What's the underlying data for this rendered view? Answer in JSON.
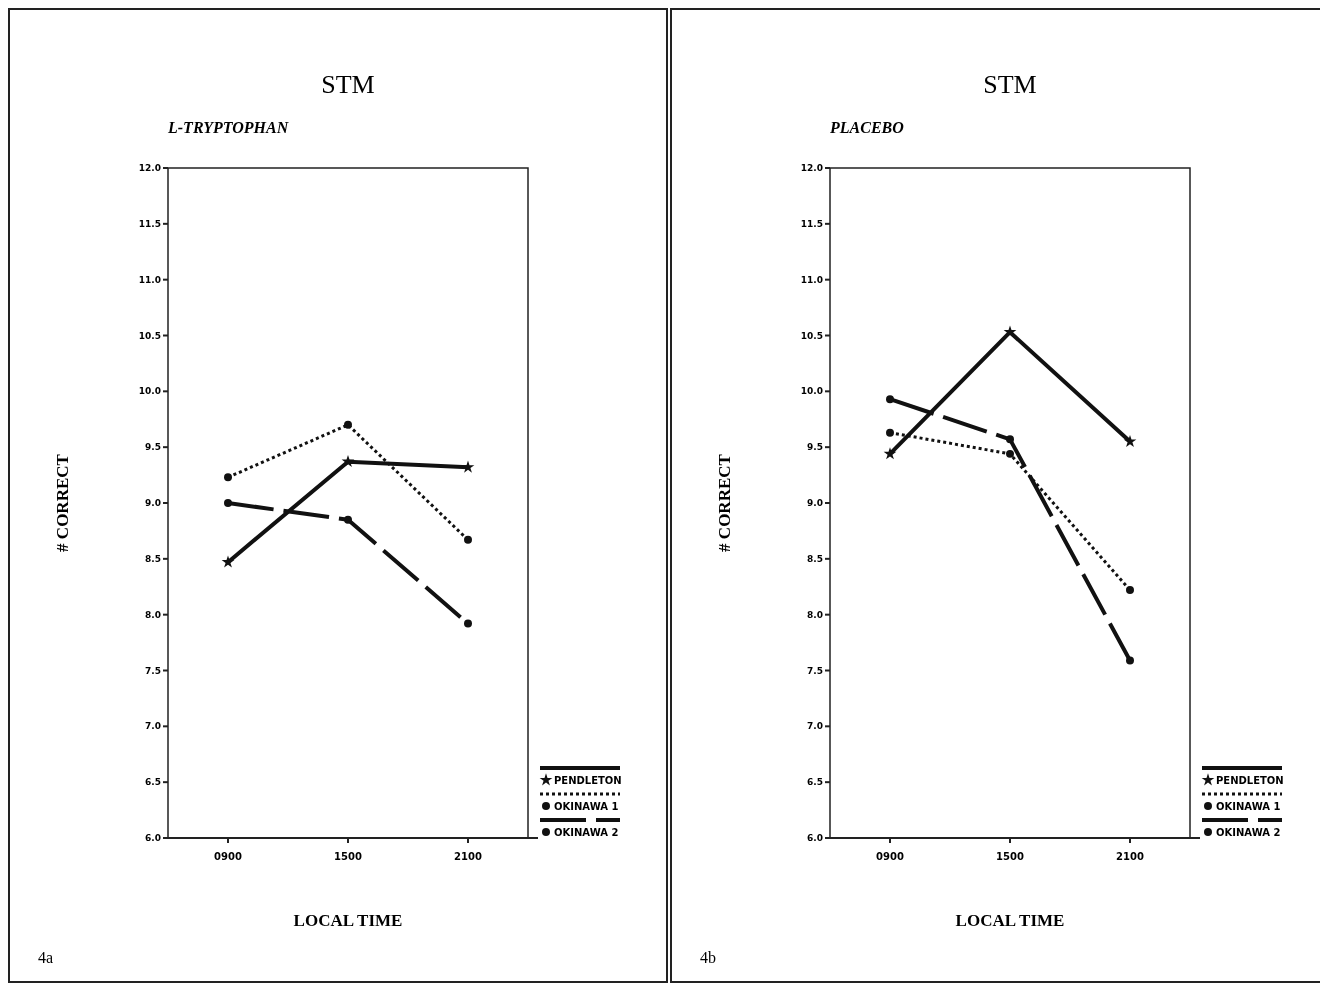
{
  "chart_data": [
    {
      "type": "line",
      "title": "STM",
      "subtitle": "L-TRYPTOPHAN",
      "xlabel": "LOCAL TIME",
      "ylabel": "# CORRECT",
      "annotations": [
        "4a"
      ],
      "categories": [
        "0900",
        "1500",
        "2100"
      ],
      "ylim": [
        6,
        12
      ],
      "yticks": [
        {
          "value": 6,
          "label": "6.0"
        },
        6.5,
        {
          "value": 7,
          "label": "7.0"
        },
        7.5,
        {
          "value": 8,
          "label": "8.0"
        },
        8.5,
        {
          "value": 9,
          "label": "9.0"
        },
        9.5,
        {
          "value": 10,
          "label": "10.0"
        },
        10.5,
        {
          "value": 11,
          "label": "11.0"
        },
        11.5,
        {
          "value": 12,
          "label": "12.0"
        }
      ],
      "legend": "bottom right",
      "grid": false,
      "series": [
        {
          "name": "PENDLETON",
          "color": "#111111",
          "values": [
            8.47,
            9.37,
            9.32
          ],
          "marker": "star",
          "line_style": "solid"
        },
        {
          "name": "OKINAWA 1",
          "color": "#111111",
          "values": [
            9.23,
            9.7,
            8.67
          ],
          "marker": "circle",
          "line_style": "dotted"
        },
        {
          "name": "OKINAWA 2",
          "color": "#111111",
          "values": [
            9.0,
            8.85,
            7.92
          ],
          "marker": "circle",
          "line_style": "dashed"
        }
      ]
    },
    {
      "type": "line",
      "title": "STM",
      "subtitle": "PLACEBO",
      "xlabel": "LOCAL TIME",
      "ylabel": "# CORRECT",
      "annotations": [
        "4b"
      ],
      "categories": [
        "0900",
        "1500",
        "2100"
      ],
      "ylim": [
        6,
        12
      ],
      "yticks": [
        {
          "value": 6,
          "label": "6.0"
        },
        6.5,
        {
          "value": 7,
          "label": "7.0"
        },
        7.5,
        {
          "value": 8,
          "label": "8.0"
        },
        8.5,
        {
          "value": 9,
          "label": "9.0"
        },
        9.5,
        {
          "value": 10,
          "label": "10.0"
        },
        10.5,
        {
          "value": 11,
          "label": "11.0"
        },
        11.5,
        {
          "value": 12,
          "label": "12.0"
        }
      ],
      "legend": "bottom right",
      "grid": false,
      "series": [
        {
          "name": "PENDLETON",
          "color": "#111111",
          "values": [
            9.44,
            10.53,
            9.55
          ],
          "marker": "star",
          "line_style": "solid"
        },
        {
          "name": "OKINAWA 1",
          "color": "#111111",
          "values": [
            9.63,
            9.44,
            8.22
          ],
          "marker": "circle",
          "line_style": "dotted"
        },
        {
          "name": "OKINAWA 2",
          "color": "#111111",
          "values": [
            9.93,
            9.57,
            7.59
          ],
          "marker": "circle",
          "line_style": "dashed"
        }
      ]
    }
  ]
}
